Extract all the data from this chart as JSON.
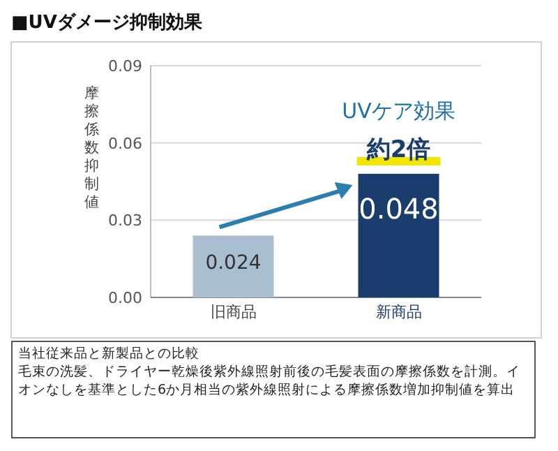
{
  "chart_data": {
    "type": "bar",
    "title": "■UVダメージ抑制効果",
    "ylabel": "摩擦係数抑制値",
    "categories": [
      "旧商品",
      "新商品"
    ],
    "values": [
      0.024,
      0.048
    ],
    "colors": [
      "#a9bfcf",
      "#1b3d6e"
    ],
    "data_labels": true,
    "ylim": [
      0,
      0.09
    ],
    "yticks": [
      {
        "value": 0,
        "label": "0.00"
      },
      {
        "value": 0.03,
        "label": "0.03"
      },
      {
        "value": 0.06,
        "label": "0.06"
      },
      {
        "value": 0.09,
        "label": "0.09"
      }
    ],
    "grid": "y",
    "annotations": [
      {
        "text": "UVケア効果",
        "x": "新商品",
        "y": 0.048
      },
      {
        "text": "約2倍",
        "x": "新商品",
        "y": 0.048
      },
      "当社従来品と新製品との比較",
      "毛束の洗髪、ドライヤー乾燥後紫外線照射前後の毛髪表面の摩擦係数を計測。イオンなしを基準とした6か月相当の紫外線照射による摩擦係数増加抑制値を算出"
    ]
  }
}
